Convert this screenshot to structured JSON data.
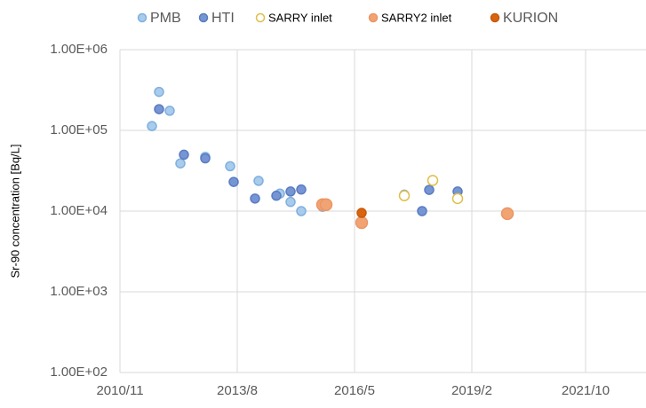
{
  "chart_data": {
    "type": "scatter",
    "y_label": "Sr-90 concentration [Bq/L]",
    "log_y": true,
    "grid": true,
    "legend": "top",
    "xlim": [
      "2010/11",
      "2023/3"
    ],
    "xticks": [
      "2010/11",
      "2013/8",
      "2016/5",
      "2019/2",
      "2021/10"
    ],
    "ylim": [
      100,
      1000000
    ],
    "yticks": [
      {
        "value": 100,
        "label": "1.00E+02"
      },
      {
        "value": 1000,
        "label": "1.00E+03"
      },
      {
        "value": 10000,
        "label": "1.00E+04"
      },
      {
        "value": 100000,
        "label": "1.00E+05"
      },
      {
        "value": 1000000,
        "label": "1.00E+06"
      }
    ],
    "series": [
      {
        "name": "PMB",
        "color": "#a9cbec",
        "stroke": "#7fb0de",
        "size": 5,
        "x": [
          "2011/8",
          "2011/10",
          "2012/1",
          "2012/4",
          "2012/11",
          "2013/6",
          "2014/2",
          "2014/8",
          "2014/11",
          "2015/2",
          "2015/8",
          "2017/7"
        ],
        "values": [
          113000,
          300000,
          175000,
          39000,
          47000,
          36000,
          23700,
          16500,
          13000,
          10000,
          11300,
          16000
        ]
      },
      {
        "name": "HTI",
        "color": "#7695d4",
        "stroke": "#5a7cc0",
        "size": 5,
        "x": [
          "2011/10",
          "2012/5",
          "2012/11",
          "2013/7",
          "2014/1",
          "2014/7",
          "2014/11",
          "2015/2",
          "2017/12",
          "2018/2",
          "2018/10"
        ],
        "values": [
          183000,
          50000,
          45000,
          23000,
          14300,
          15500,
          17500,
          18500,
          10000,
          18300,
          17500
        ]
      },
      {
        "name": "SARRY inlet",
        "color": "#ffffff",
        "stroke": "#e0be4a",
        "size": 5.5,
        "x": [
          "2017/7",
          "2018/3",
          "2018/10"
        ],
        "values": [
          15500,
          24000,
          14300
        ]
      },
      {
        "name": "SARRY2 inlet",
        "color": "#f2a373",
        "stroke": "#eb9664",
        "size": 6.5,
        "x": [
          "2015/8",
          "2015/9",
          "2016/7",
          "2019/12"
        ],
        "values": [
          12000,
          12000,
          7200,
          9300
        ]
      },
      {
        "name": "KURION",
        "color": "#d9640f",
        "stroke": "#c85a0a",
        "size": 5,
        "x": [
          "2016/7"
        ],
        "values": [
          9500
        ]
      }
    ]
  }
}
